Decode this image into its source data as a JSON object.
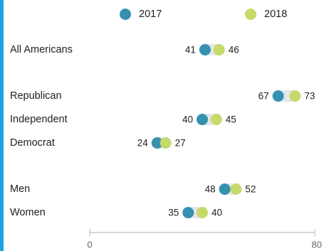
{
  "colors": {
    "accent_bar": "#1fa2e0",
    "series_2017": "#3591ae",
    "series_2018": "#c5da6b",
    "connector": "#e4e7ea",
    "axis": "#cccccc"
  },
  "legend": [
    {
      "label": "2017",
      "color": "#3591ae"
    },
    {
      "label": "2018",
      "color": "#c5da6b"
    }
  ],
  "chart_data": {
    "type": "dumbbell",
    "title": "",
    "xlabel": "",
    "ylabel": "",
    "xlim": [
      0,
      80
    ],
    "xticks": [
      0,
      80
    ],
    "grid": false,
    "legend_position": "top",
    "series": [
      {
        "name": "2017",
        "color": "#3591ae"
      },
      {
        "name": "2018",
        "color": "#c5da6b"
      }
    ],
    "groups": [
      {
        "rows": [
          {
            "label": "All Americans",
            "v2017": 41,
            "v2018": 46
          }
        ]
      },
      {
        "rows": [
          {
            "label": "Republican",
            "v2017": 67,
            "v2018": 73
          },
          {
            "label": "Independent",
            "v2017": 40,
            "v2018": 45
          },
          {
            "label": "Democrat",
            "v2017": 24,
            "v2018": 27
          }
        ]
      },
      {
        "rows": [
          {
            "label": "Men",
            "v2017": 48,
            "v2018": 52
          },
          {
            "label": "Women",
            "v2017": 35,
            "v2018": 40
          }
        ]
      }
    ]
  }
}
